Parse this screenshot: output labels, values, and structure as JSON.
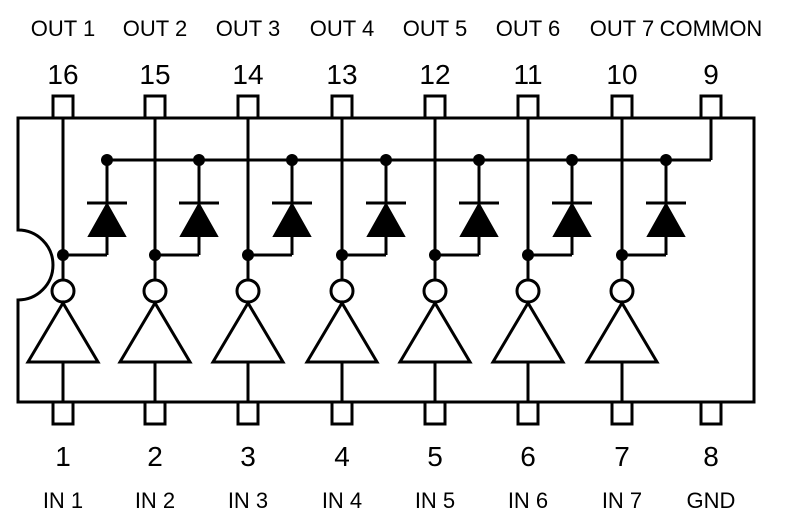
{
  "top_pins": [
    {
      "label": "OUT 1",
      "number": "16"
    },
    {
      "label": "OUT 2",
      "number": "15"
    },
    {
      "label": "OUT 3",
      "number": "14"
    },
    {
      "label": "OUT 4",
      "number": "13"
    },
    {
      "label": "OUT 5",
      "number": "12"
    },
    {
      "label": "OUT 6",
      "number": "11"
    },
    {
      "label": "OUT 7",
      "number": "10"
    },
    {
      "label": "COMMON",
      "number": "9"
    }
  ],
  "bottom_pins": [
    {
      "label": "IN 1",
      "number": "1"
    },
    {
      "label": "IN 2",
      "number": "2"
    },
    {
      "label": "IN 3",
      "number": "3"
    },
    {
      "label": "IN 4",
      "number": "4"
    },
    {
      "label": "IN 5",
      "number": "5"
    },
    {
      "label": "IN 6",
      "number": "6"
    },
    {
      "label": "IN 7",
      "number": "7"
    },
    {
      "label": "GND",
      "number": "8"
    }
  ],
  "channel_count": 7
}
